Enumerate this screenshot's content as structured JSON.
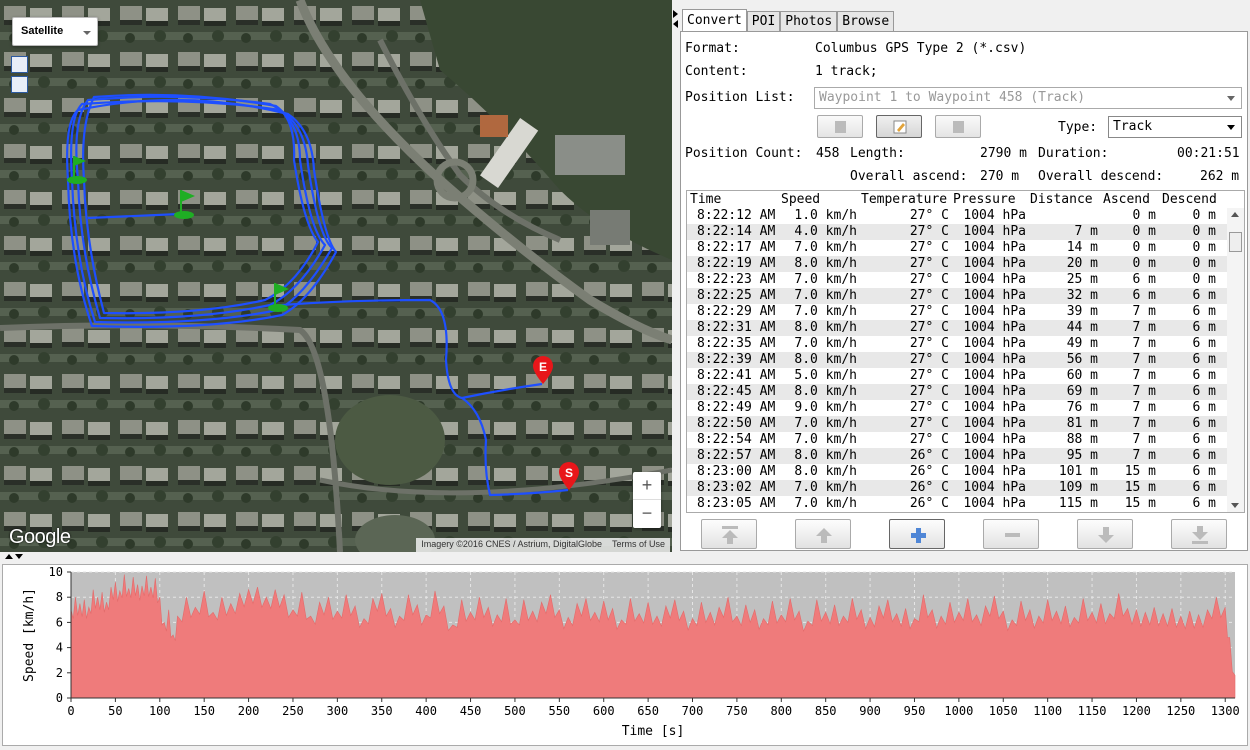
{
  "map": {
    "map_type": "Satellite",
    "zoom_in": "+",
    "zoom_out": "−",
    "logo": "Google",
    "imagery_credit": "Imagery ©2016 CNES / Astrium, DigitalGlobe",
    "terms": "Terms of Use",
    "start_marker": "S",
    "end_marker": "E",
    "track_color": "#1e4fff",
    "marker_color": "#e8161a",
    "flag_color": "#1fae24"
  },
  "tabs": [
    "Convert",
    "POI",
    "Photos",
    "Browse"
  ],
  "convert": {
    "format_label": "Format:",
    "format_value": "Columbus GPS Type 2 (*.csv)",
    "content_label": "Content:",
    "content_value": "1 track;",
    "position_list_label": "Position List:",
    "position_list_value": "Waypoint 1 to Waypoint 458 (Track)",
    "type_label": "Type:",
    "type_value": "Track",
    "position_count_label": "Position Count:",
    "position_count_value": "458",
    "length_label": "Length:",
    "length_value": "2790 m",
    "duration_label": "Duration:",
    "duration_value": "00:21:51",
    "ascend_label": "Overall ascend:",
    "ascend_value": "270 m",
    "descend_label": "Overall descend:",
    "descend_value": "262 m"
  },
  "table": {
    "columns": [
      "Time",
      "Speed",
      "Temperature",
      "Pressure",
      "Distance",
      "Ascend",
      "Descend"
    ],
    "rows": [
      [
        "8:22:12 AM",
        "1.0 km/h",
        "27° C",
        "1004 hPa",
        "",
        "0 m",
        "0 m"
      ],
      [
        "8:22:14 AM",
        "4.0 km/h",
        "27° C",
        "1004 hPa",
        "7 m",
        "0 m",
        "0 m"
      ],
      [
        "8:22:17 AM",
        "7.0 km/h",
        "27° C",
        "1004 hPa",
        "14 m",
        "0 m",
        "0 m"
      ],
      [
        "8:22:19 AM",
        "8.0 km/h",
        "27° C",
        "1004 hPa",
        "20 m",
        "0 m",
        "0 m"
      ],
      [
        "8:22:23 AM",
        "7.0 km/h",
        "27° C",
        "1004 hPa",
        "25 m",
        "6 m",
        "0 m"
      ],
      [
        "8:22:25 AM",
        "7.0 km/h",
        "27° C",
        "1004 hPa",
        "32 m",
        "6 m",
        "6 m"
      ],
      [
        "8:22:29 AM",
        "7.0 km/h",
        "27° C",
        "1004 hPa",
        "39 m",
        "7 m",
        "6 m"
      ],
      [
        "8:22:31 AM",
        "8.0 km/h",
        "27° C",
        "1004 hPa",
        "44 m",
        "7 m",
        "6 m"
      ],
      [
        "8:22:35 AM",
        "7.0 km/h",
        "27° C",
        "1004 hPa",
        "49 m",
        "7 m",
        "6 m"
      ],
      [
        "8:22:39 AM",
        "8.0 km/h",
        "27° C",
        "1004 hPa",
        "56 m",
        "7 m",
        "6 m"
      ],
      [
        "8:22:41 AM",
        "5.0 km/h",
        "27° C",
        "1004 hPa",
        "60 m",
        "7 m",
        "6 m"
      ],
      [
        "8:22:45 AM",
        "8.0 km/h",
        "27° C",
        "1004 hPa",
        "69 m",
        "7 m",
        "6 m"
      ],
      [
        "8:22:49 AM",
        "9.0 km/h",
        "27° C",
        "1004 hPa",
        "76 m",
        "7 m",
        "6 m"
      ],
      [
        "8:22:50 AM",
        "7.0 km/h",
        "27° C",
        "1004 hPa",
        "81 m",
        "7 m",
        "6 m"
      ],
      [
        "8:22:54 AM",
        "7.0 km/h",
        "27° C",
        "1004 hPa",
        "88 m",
        "7 m",
        "6 m"
      ],
      [
        "8:22:57 AM",
        "8.0 km/h",
        "26° C",
        "1004 hPa",
        "95 m",
        "7 m",
        "6 m"
      ],
      [
        "8:23:00 AM",
        "8.0 km/h",
        "26° C",
        "1004 hPa",
        "101 m",
        "15 m",
        "6 m"
      ],
      [
        "8:23:02 AM",
        "7.0 km/h",
        "26° C",
        "1004 hPa",
        "109 m",
        "15 m",
        "6 m"
      ],
      [
        "8:23:05 AM",
        "7.0 km/h",
        "26° C",
        "1004 hPa",
        "115 m",
        "15 m",
        "6 m"
      ]
    ]
  },
  "chart_data": {
    "type": "area",
    "xlabel": "Time [s]",
    "ylabel": "Speed [km/h]",
    "xlim": [
      0,
      1311
    ],
    "ylim": [
      0,
      10
    ],
    "xticks": [
      0,
      50,
      100,
      150,
      200,
      250,
      300,
      350,
      400,
      450,
      500,
      550,
      600,
      650,
      700,
      750,
      800,
      850,
      900,
      950,
      1000,
      1050,
      1100,
      1150,
      1200,
      1250,
      1300
    ],
    "yticks": [
      0,
      2,
      4,
      6,
      8,
      10
    ],
    "grid": true,
    "fill_color": "#ef7b7b",
    "series": [
      {
        "x": [
          0,
          5,
          10,
          15,
          20,
          25,
          30,
          35,
          40,
          45,
          50,
          55,
          60,
          65,
          70,
          75,
          80,
          85,
          90,
          95,
          100,
          105,
          110,
          115,
          120,
          130,
          140,
          150,
          160,
          170,
          180,
          190,
          200,
          210,
          220,
          230,
          240,
          250,
          260,
          270,
          280,
          290,
          300,
          310,
          320,
          330,
          340,
          350,
          360,
          370,
          380,
          390,
          400,
          410,
          420,
          430,
          440,
          450,
          460,
          470,
          480,
          490,
          500,
          510,
          520,
          530,
          540,
          550,
          560,
          570,
          580,
          590,
          600,
          610,
          620,
          630,
          640,
          650,
          660,
          670,
          680,
          690,
          700,
          710,
          720,
          730,
          740,
          750,
          760,
          770,
          780,
          790,
          800,
          810,
          820,
          830,
          840,
          850,
          860,
          870,
          880,
          890,
          900,
          910,
          920,
          930,
          940,
          950,
          960,
          970,
          980,
          990,
          1000,
          1010,
          1020,
          1030,
          1040,
          1050,
          1060,
          1070,
          1080,
          1090,
          1100,
          1110,
          1120,
          1130,
          1140,
          1150,
          1160,
          1170,
          1180,
          1190,
          1200,
          1210,
          1220,
          1230,
          1240,
          1250,
          1260,
          1270,
          1280,
          1290,
          1300,
          1305,
          1311
        ],
        "y": [
          7.0,
          8.0,
          7.5,
          7.8,
          7.2,
          8.6,
          8.0,
          8.4,
          7.6,
          8.8,
          9.2,
          8.5,
          9.8,
          8.7,
          9.6,
          9.0,
          8.9,
          9.7,
          8.8,
          9.5,
          8.0,
          6.0,
          7.0,
          5.0,
          6.5,
          8.0,
          7.2,
          8.5,
          6.8,
          8.0,
          7.5,
          8.3,
          8.6,
          8.8,
          8.0,
          8.6,
          8.2,
          7.0,
          8.4,
          6.5,
          7.6,
          8.0,
          6.9,
          8.2,
          7.3,
          6.3,
          7.9,
          8.3,
          7.1,
          6.5,
          8.2,
          7.4,
          6.6,
          8.5,
          7.3,
          5.8,
          7.8,
          6.8,
          8.0,
          7.2,
          6.6,
          7.9,
          6.2,
          7.8,
          6.9,
          7.6,
          8.2,
          7.0,
          6.4,
          7.5,
          7.9,
          6.8,
          7.7,
          7.1,
          6.2,
          7.9,
          6.7,
          7.6,
          6.5,
          7.3,
          7.8,
          6.9,
          6.3,
          7.6,
          6.8,
          7.2,
          8.0,
          6.5,
          7.4,
          7.0,
          6.3,
          7.7,
          6.6,
          7.9,
          6.9,
          6.1,
          7.8,
          6.8,
          7.4,
          6.5,
          7.9,
          7.0,
          6.4,
          7.3,
          7.8,
          6.7,
          7.1,
          6.3,
          8.2,
          7.0,
          6.5,
          7.6,
          6.8,
          7.9,
          6.6,
          7.3,
          8.1,
          6.9,
          6.2,
          7.7,
          7.0,
          6.5,
          7.8,
          6.9,
          7.3,
          6.4,
          7.9,
          6.8,
          7.5,
          6.7,
          8.3,
          7.1,
          7.0,
          6.8,
          7.2,
          6.7,
          7.1,
          6.5,
          6.9,
          6.6,
          7.0,
          8.0,
          7.2,
          4.8,
          1.8
        ]
      }
    ]
  }
}
